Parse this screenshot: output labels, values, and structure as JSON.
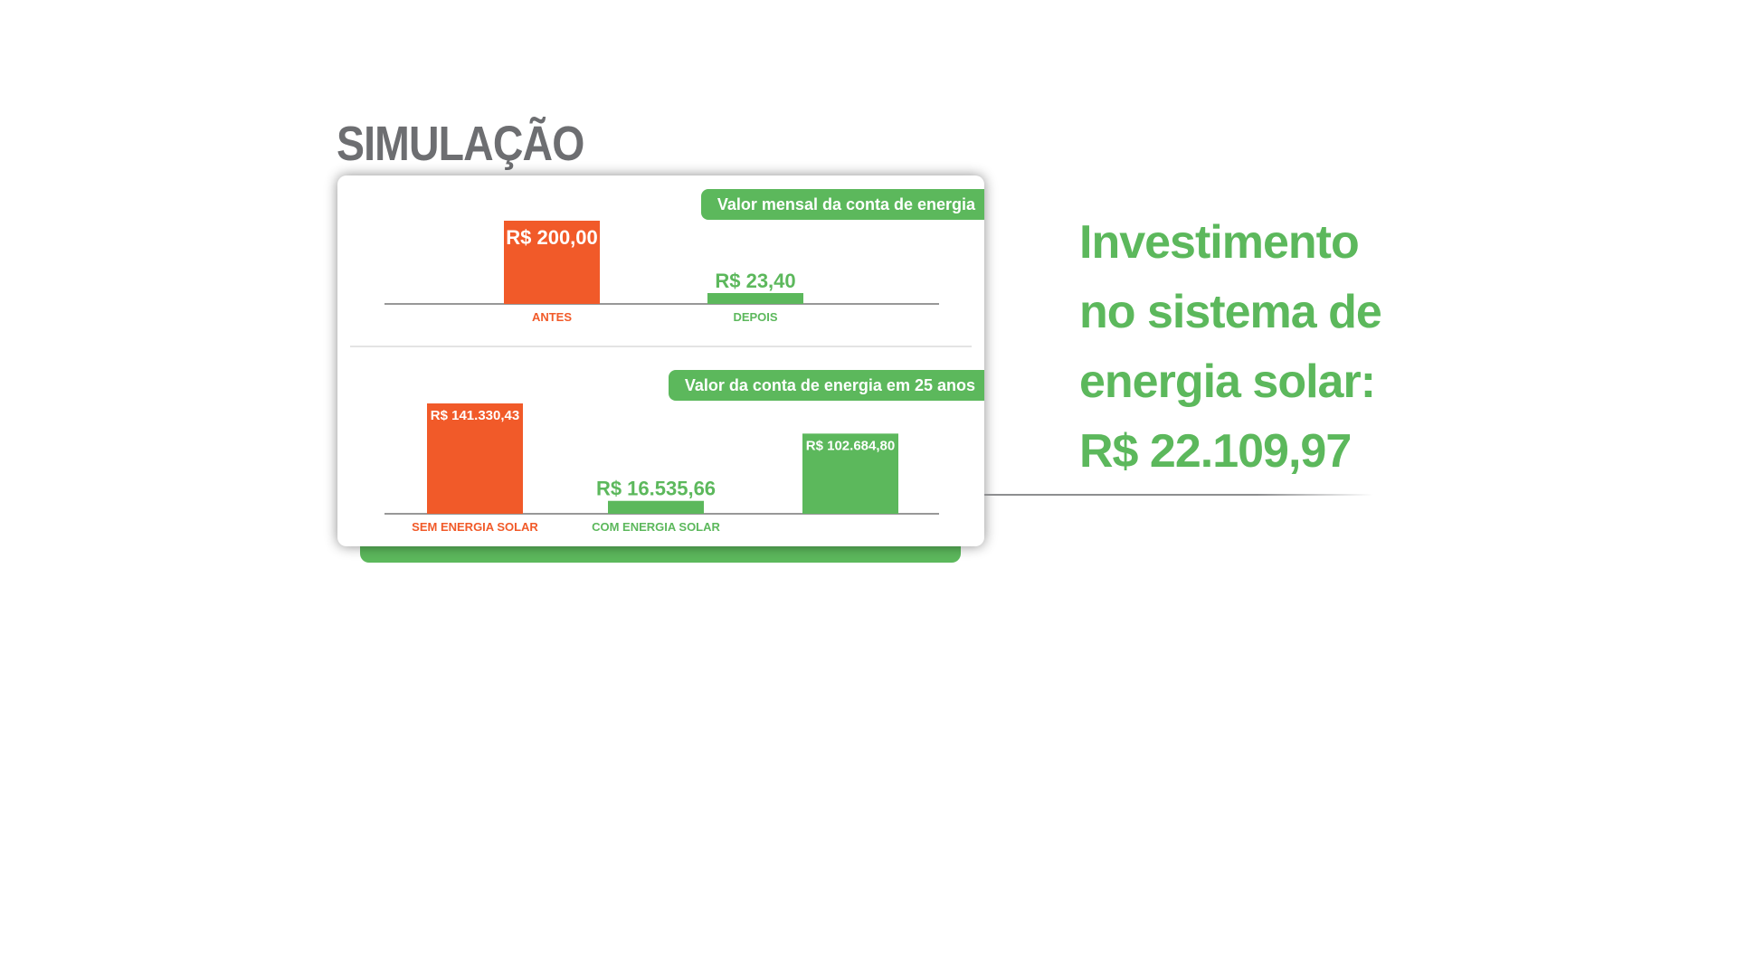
{
  "title": "SIMULAÇÃO",
  "colors": {
    "orange": "#f15a29",
    "green": "#5cb85c",
    "gray": "#6d6e71"
  },
  "investment": {
    "lines": [
      "Investimento",
      "no sistema de",
      "energia solar:",
      "R$ 22.109,97"
    ]
  },
  "chart_data": [
    {
      "type": "bar",
      "title": "Valor mensal da conta de energia",
      "categories": [
        "ANTES",
        "DEPOIS"
      ],
      "values": [
        200.0,
        23.4
      ],
      "value_labels": [
        "R$ 200,00",
        "R$ 23,40"
      ],
      "bar_colors": [
        "#f15a29",
        "#5cb85c"
      ],
      "ylim": [
        0,
        200
      ]
    },
    {
      "type": "bar",
      "title": "Valor da conta de energia em 25 anos",
      "categories": [
        "SEM ENERGIA SOLAR",
        "COM ENERGIA SOLAR",
        ""
      ],
      "values": [
        141330.43,
        16535.66,
        102684.8
      ],
      "value_labels": [
        "R$ 141.330,43",
        "R$ 16.535,66",
        "R$ 102.684,80"
      ],
      "bar_colors": [
        "#f15a29",
        "#5cb85c",
        "#5cb85c"
      ],
      "ylim": [
        0,
        141330.43
      ]
    }
  ]
}
